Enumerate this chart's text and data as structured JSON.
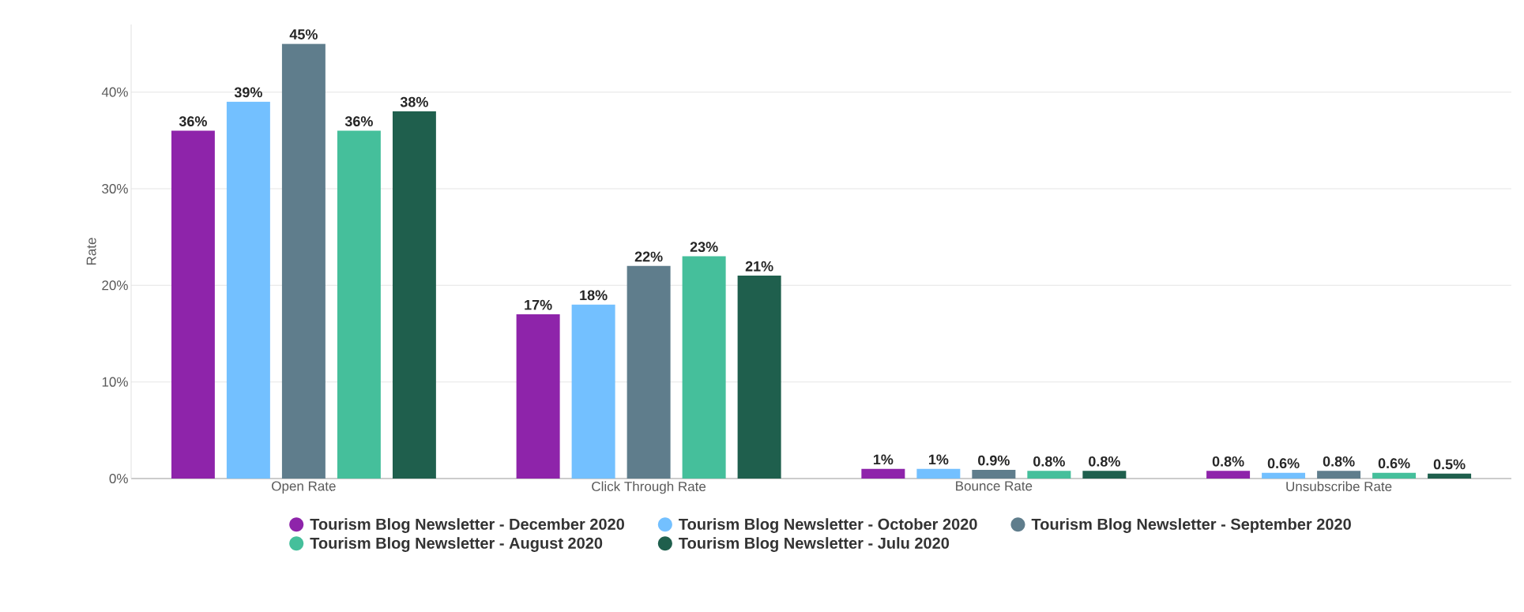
{
  "chart_data": {
    "type": "bar",
    "ylabel": "Rate",
    "categories": [
      "Open Rate",
      "Click Through Rate",
      "Bounce Rate",
      "Unsubscribe Rate"
    ],
    "series": [
      {
        "name": "Tourism Blog Newsletter - December 2020",
        "color": "#8e24aa",
        "values": [
          36,
          17,
          1,
          0.8
        ],
        "value_labels": [
          "36%",
          "17%",
          "1%",
          "0.8%"
        ]
      },
      {
        "name": "Tourism Blog Newsletter - October 2020",
        "color": "#73c0ff",
        "values": [
          39,
          18,
          1,
          0.6
        ],
        "value_labels": [
          "39%",
          "18%",
          "1%",
          "0.6%"
        ]
      },
      {
        "name": "Tourism Blog Newsletter - September 2020",
        "color": "#5f7d8c",
        "values": [
          45,
          22,
          0.9,
          0.8
        ],
        "value_labels": [
          "45%",
          "22%",
          "0.9%",
          "0.8%"
        ]
      },
      {
        "name": "Tourism Blog Newsletter - August 2020",
        "color": "#45bf9b",
        "values": [
          36,
          23,
          0.8,
          0.6
        ],
        "value_labels": [
          "36%",
          "23%",
          "0.8%",
          "0.6%"
        ]
      },
      {
        "name": "Tourism Blog Newsletter - Julu 2020",
        "color": "#1f5f4d",
        "values": [
          38,
          21,
          0.8,
          0.5
        ],
        "value_labels": [
          "38%",
          "21%",
          "0.8%",
          "0.5%"
        ]
      }
    ],
    "ylim": [
      0,
      47
    ],
    "yticks": [
      {
        "value": 0,
        "label": "0%"
      },
      {
        "value": 10,
        "label": "10%"
      },
      {
        "value": 20,
        "label": "20%"
      },
      {
        "value": 30,
        "label": "30%"
      },
      {
        "value": 40,
        "label": "40%"
      }
    ],
    "grid": "y",
    "legend": "bottom"
  }
}
